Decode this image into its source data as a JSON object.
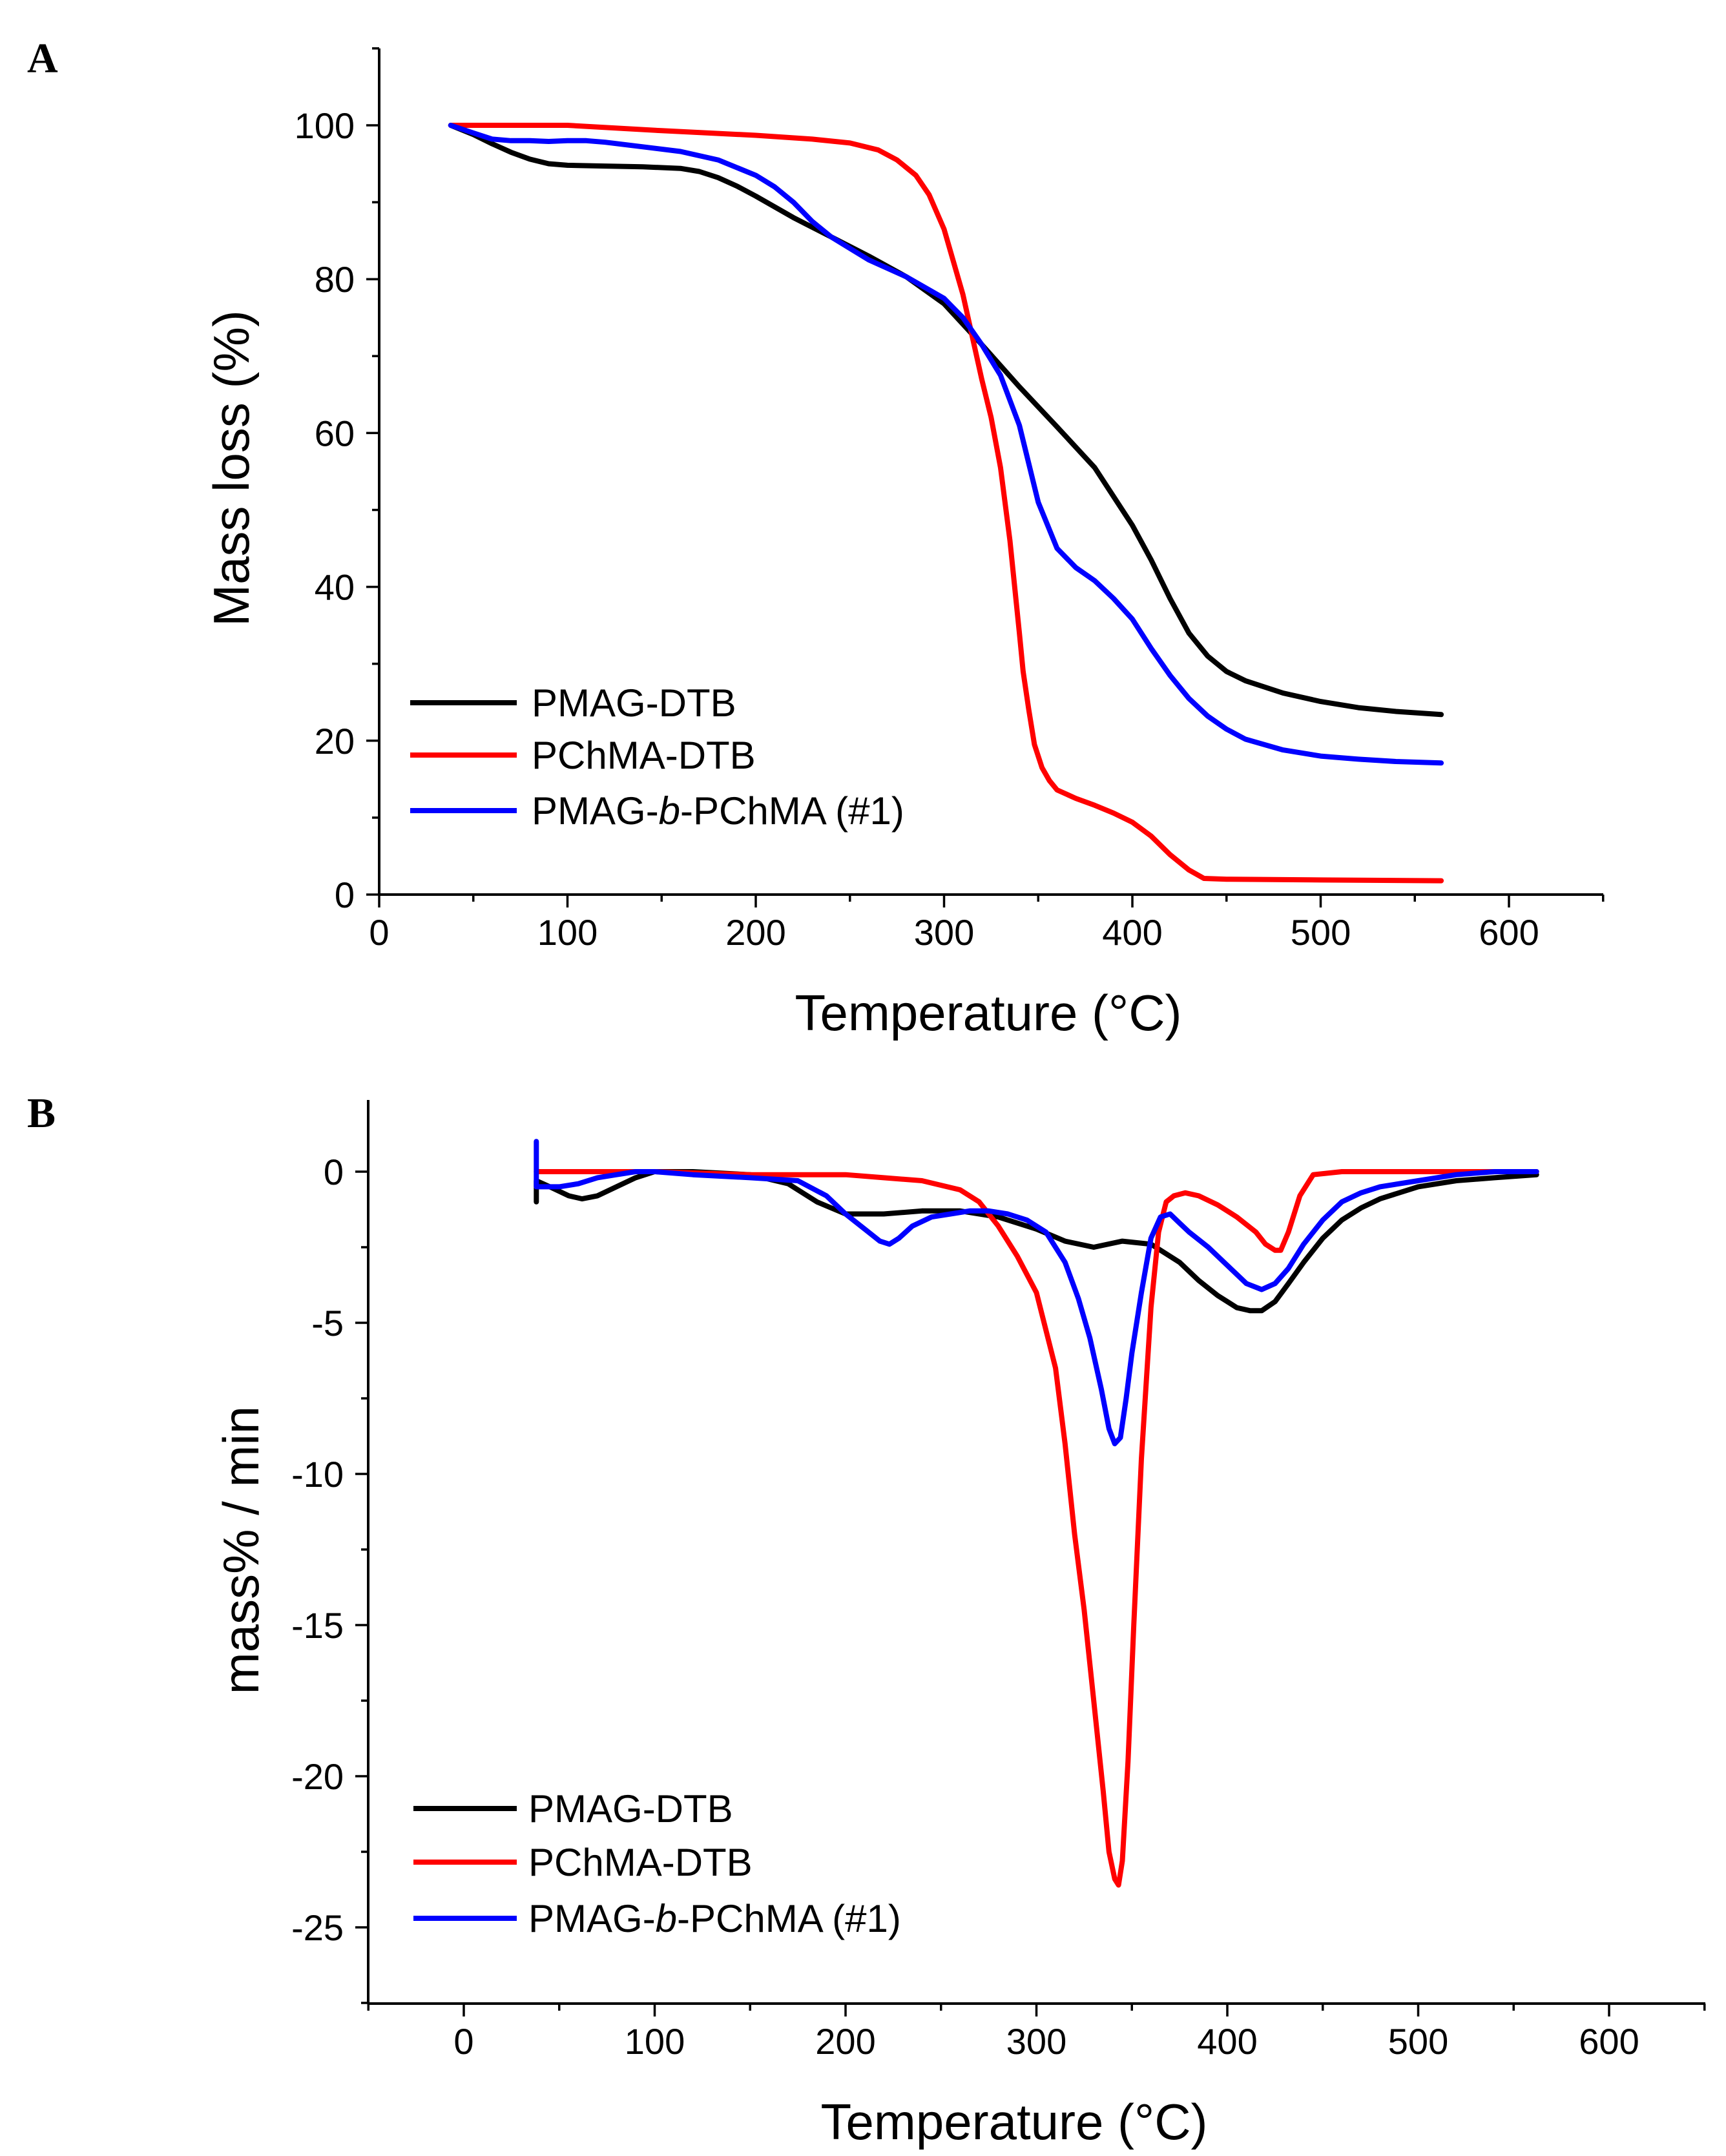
{
  "chart_data": [
    {
      "type": "line",
      "panel_label": "A",
      "title": "",
      "xlabel": "Temperature (°C)",
      "ylabel": "Mass loss (%)",
      "xlim": [
        0,
        650
      ],
      "ylim": [
        0,
        110
      ],
      "xticks": [
        0,
        100,
        200,
        300,
        400,
        500,
        600
      ],
      "yticks": [
        0,
        20,
        40,
        60,
        80,
        100
      ],
      "xtick_labels": [
        "0",
        "100",
        "200",
        "300",
        "400",
        "500",
        "600"
      ],
      "ytick_labels": [
        "0",
        "20",
        "40",
        "60",
        "80",
        "100"
      ],
      "legend": {
        "position": "bottom-left"
      },
      "series": [
        {
          "name": "PMAG-DTB",
          "color": "#000000",
          "x": [
            38,
            50,
            60,
            70,
            80,
            90,
            100,
            120,
            140,
            160,
            170,
            180,
            190,
            200,
            220,
            240,
            260,
            280,
            300,
            320,
            340,
            360,
            380,
            400,
            410,
            420,
            430,
            440,
            450,
            460,
            480,
            500,
            520,
            540,
            564
          ],
          "y": [
            100,
            98.8,
            97.6,
            96.5,
            95.6,
            95.0,
            94.8,
            94.7,
            94.6,
            94.4,
            94.0,
            93.2,
            92.1,
            90.8,
            88.0,
            85.5,
            83.0,
            80.3,
            76.8,
            71.5,
            66.0,
            60.8,
            55.5,
            48.0,
            43.5,
            38.5,
            34.0,
            31.0,
            29.0,
            27.8,
            26.2,
            25.1,
            24.3,
            23.8,
            23.4
          ]
        },
        {
          "name": "PChMA-DTB",
          "color": "#ff0000",
          "x": [
            38,
            60,
            100,
            150,
            200,
            230,
            250,
            265,
            275,
            285,
            292,
            300,
            310,
            320,
            325,
            330,
            335,
            340,
            342,
            345,
            348,
            352,
            356,
            360,
            370,
            380,
            390,
            400,
            410,
            420,
            430,
            438,
            450,
            500,
            564
          ],
          "y": [
            100,
            100,
            100,
            99.3,
            98.7,
            98.2,
            97.7,
            96.8,
            95.5,
            93.5,
            91.0,
            86.5,
            78.0,
            67.0,
            62.0,
            55.5,
            46.0,
            34.0,
            29.0,
            24.0,
            19.5,
            16.5,
            14.8,
            13.6,
            12.5,
            11.6,
            10.6,
            9.4,
            7.6,
            5.2,
            3.2,
            2.1,
            2.0,
            1.9,
            1.8
          ]
        },
        {
          "name": "PMAG-b-PChMA (#1)",
          "color": "#0000ff",
          "x": [
            38,
            50,
            60,
            70,
            80,
            90,
            100,
            110,
            120,
            140,
            160,
            180,
            200,
            210,
            220,
            230,
            240,
            250,
            260,
            280,
            300,
            310,
            320,
            330,
            340,
            345,
            350,
            360,
            370,
            380,
            390,
            400,
            410,
            420,
            430,
            440,
            450,
            460,
            480,
            500,
            520,
            540,
            564
          ],
          "y": [
            100,
            99.0,
            98.2,
            98.0,
            98.0,
            97.9,
            98.0,
            98.0,
            97.8,
            97.2,
            96.6,
            95.5,
            93.5,
            92.0,
            90.0,
            87.5,
            85.5,
            84.0,
            82.5,
            80.3,
            77.5,
            75.0,
            71.5,
            67.5,
            61.0,
            56.0,
            51.0,
            45.0,
            42.5,
            40.8,
            38.5,
            35.8,
            32.0,
            28.5,
            25.5,
            23.2,
            21.5,
            20.2,
            18.8,
            18.0,
            17.6,
            17.3,
            17.1
          ]
        }
      ]
    },
    {
      "type": "line",
      "panel_label": "B",
      "title": "",
      "xlabel": "Temperature (°C)",
      "ylabel": "mass% / min",
      "xlim": [
        -50,
        650
      ],
      "ylim": [
        -27.5,
        2.5
      ],
      "xticks": [
        0,
        100,
        200,
        300,
        400,
        500,
        600
      ],
      "yticks": [
        0,
        -5,
        -10,
        -15,
        -20,
        -25
      ],
      "xtick_labels": [
        "0",
        "100",
        "200",
        "300",
        "400",
        "500",
        "600"
      ],
      "ytick_labels": [
        "0",
        "-5",
        "-10",
        "-15",
        "-20",
        "-25"
      ],
      "legend": {
        "position": "bottom-left"
      },
      "series": [
        {
          "name": "PMAG-DTB",
          "color": "#000000",
          "x": [
            38,
            38,
            38,
            45,
            55,
            62,
            70,
            80,
            90,
            100,
            110,
            120,
            150,
            170,
            185,
            200,
            220,
            240,
            260,
            280,
            300,
            315,
            330,
            345,
            360,
            375,
            385,
            395,
            405,
            412,
            418,
            425,
            432,
            440,
            450,
            460,
            470,
            480,
            500,
            520,
            540,
            562
          ],
          "y": [
            -0.3,
            -1.0,
            -0.3,
            -0.5,
            -0.8,
            -0.9,
            -0.8,
            -0.5,
            -0.2,
            0.0,
            0.0,
            0.0,
            -0.1,
            -0.4,
            -1.0,
            -1.4,
            -1.4,
            -1.3,
            -1.3,
            -1.5,
            -1.9,
            -2.3,
            -2.5,
            -2.3,
            -2.4,
            -3.0,
            -3.6,
            -4.1,
            -4.5,
            -4.6,
            -4.6,
            -4.3,
            -3.7,
            -3.0,
            -2.2,
            -1.6,
            -1.2,
            -0.9,
            -0.5,
            -0.3,
            -0.2,
            -0.1
          ]
        },
        {
          "name": "PChMA-DTB",
          "color": "#ff0000",
          "x": [
            38,
            60,
            100,
            150,
            180,
            200,
            220,
            240,
            260,
            270,
            280,
            290,
            300,
            310,
            315,
            320,
            325,
            330,
            335,
            338,
            341,
            343,
            345,
            348,
            351,
            355,
            360,
            364,
            368,
            372,
            378,
            385,
            395,
            405,
            415,
            420,
            425,
            428,
            432,
            438,
            445,
            460,
            500,
            562
          ],
          "y": [
            0.0,
            0.0,
            0.0,
            -0.1,
            -0.1,
            -0.1,
            -0.2,
            -0.3,
            -0.6,
            -1.0,
            -1.8,
            -2.8,
            -4.0,
            -6.5,
            -9.0,
            -12.0,
            -14.5,
            -17.5,
            -20.5,
            -22.5,
            -23.4,
            -23.6,
            -22.8,
            -19.5,
            -15.0,
            -9.5,
            -4.5,
            -2.0,
            -1.0,
            -0.8,
            -0.7,
            -0.8,
            -1.1,
            -1.5,
            -2.0,
            -2.4,
            -2.6,
            -2.6,
            -2.0,
            -0.8,
            -0.1,
            0.0,
            0.0,
            0.0
          ]
        },
        {
          "name": "PMAG-b-PChMA (#1)",
          "color": "#0000ff",
          "x": [
            38,
            38,
            40,
            50,
            60,
            70,
            80,
            90,
            100,
            120,
            150,
            175,
            190,
            200,
            210,
            218,
            223,
            228,
            235,
            245,
            255,
            265,
            275,
            285,
            295,
            305,
            315,
            322,
            328,
            334,
            338,
            341,
            344,
            347,
            350,
            355,
            360,
            365,
            370,
            375,
            380,
            390,
            400,
            410,
            418,
            425,
            432,
            440,
            450,
            460,
            470,
            480,
            500,
            520,
            540,
            561,
            562,
            561
          ],
          "y": [
            1.0,
            -0.5,
            -0.5,
            -0.5,
            -0.4,
            -0.2,
            -0.1,
            0.0,
            0.0,
            -0.1,
            -0.2,
            -0.3,
            -0.8,
            -1.4,
            -1.9,
            -2.3,
            -2.4,
            -2.2,
            -1.8,
            -1.5,
            -1.4,
            -1.3,
            -1.3,
            -1.4,
            -1.6,
            -2.0,
            -3.0,
            -4.2,
            -5.5,
            -7.2,
            -8.5,
            -9.0,
            -8.8,
            -7.5,
            -6.0,
            -4.0,
            -2.2,
            -1.5,
            -1.4,
            -1.7,
            -2.0,
            -2.5,
            -3.1,
            -3.7,
            -3.9,
            -3.7,
            -3.2,
            -2.4,
            -1.6,
            -1.0,
            -0.7,
            -0.5,
            -0.3,
            -0.1,
            0.0,
            0.0,
            0.0,
            0.0
          ]
        }
      ]
    }
  ]
}
